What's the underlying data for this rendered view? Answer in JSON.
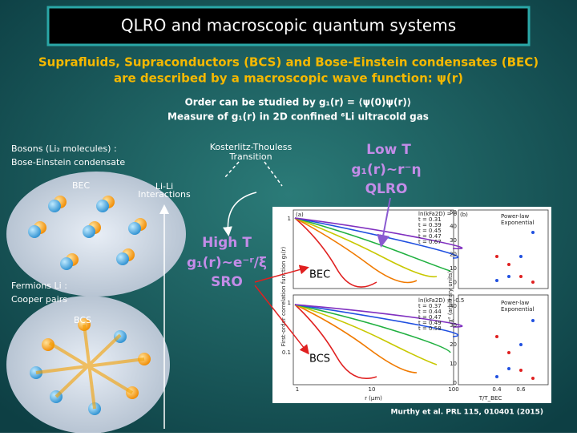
{
  "title": "QLRO and macroscopic quantum systems",
  "intro": [
    "Suprafluids, Supraconductors (BCS) and Bose-Einstein condensates (BEC)",
    "are described by a macroscopic wave function: ψ(r)"
  ],
  "order": [
    "Order can be studied by g₁(r) = ⟨ψ(0)ψ(r)⟩",
    "Measure of g₁(r) in 2D confined ⁶Li ultracold gas"
  ],
  "bosons": [
    "Bosons (Li₂ molecules) :",
    "Bose-Einstein condensate"
  ],
  "bec_label": "BEC",
  "interactions": [
    "Li-Li",
    "Interactions"
  ],
  "fermions": [
    "Fermions Li :",
    "Cooper pairs"
  ],
  "bcs_label": "BCS",
  "transition": [
    "Kosterlitz-Thouless",
    "Transition"
  ],
  "low_t": [
    "Low T",
    "g₁(r)~r⁻η",
    "QLRO"
  ],
  "high_t": [
    "High T",
    "g₁(r)~e⁻ʳ/ξ",
    "SRO"
  ],
  "figure": {
    "panel_a": "(a)",
    "panel_b": "(b)",
    "bec": "BEC",
    "bcs": "BCS",
    "y_label_a": "First-order correlation function g₁(r)",
    "x_label_a": "r (μm)",
    "y_label_b": "χ² (arbitrary units)",
    "x_label_b": "T/T_BEC",
    "legend_top": [
      "ln(kFa2D) = 0",
      "t = 0.31",
      "t = 0.39",
      "t = 0.45",
      "t = 0.47",
      "t = 0.67"
    ],
    "legend_bottom": [
      "ln(kFa2D) = -0.5",
      "t = 0.37",
      "t = 0.44",
      "t = 0.47",
      "t = 0.49",
      "t = 0.58"
    ],
    "legend_b": [
      "Power-law",
      "Exponential"
    ],
    "y_ticks_a": [
      "1",
      "1",
      "0.1"
    ],
    "x_ticks_a": [
      "1",
      "10",
      "100"
    ],
    "y_ticks_b_top": [
      "50",
      "40",
      "30",
      "20",
      "10",
      "0"
    ],
    "y_ticks_b_bottom": [
      "40",
      "30",
      "20",
      "10",
      "0"
    ],
    "x_ticks_b": [
      "0.4",
      "0.6"
    ]
  },
  "citation": "Murthy et al. PRL 115, 010401 (2015)"
}
